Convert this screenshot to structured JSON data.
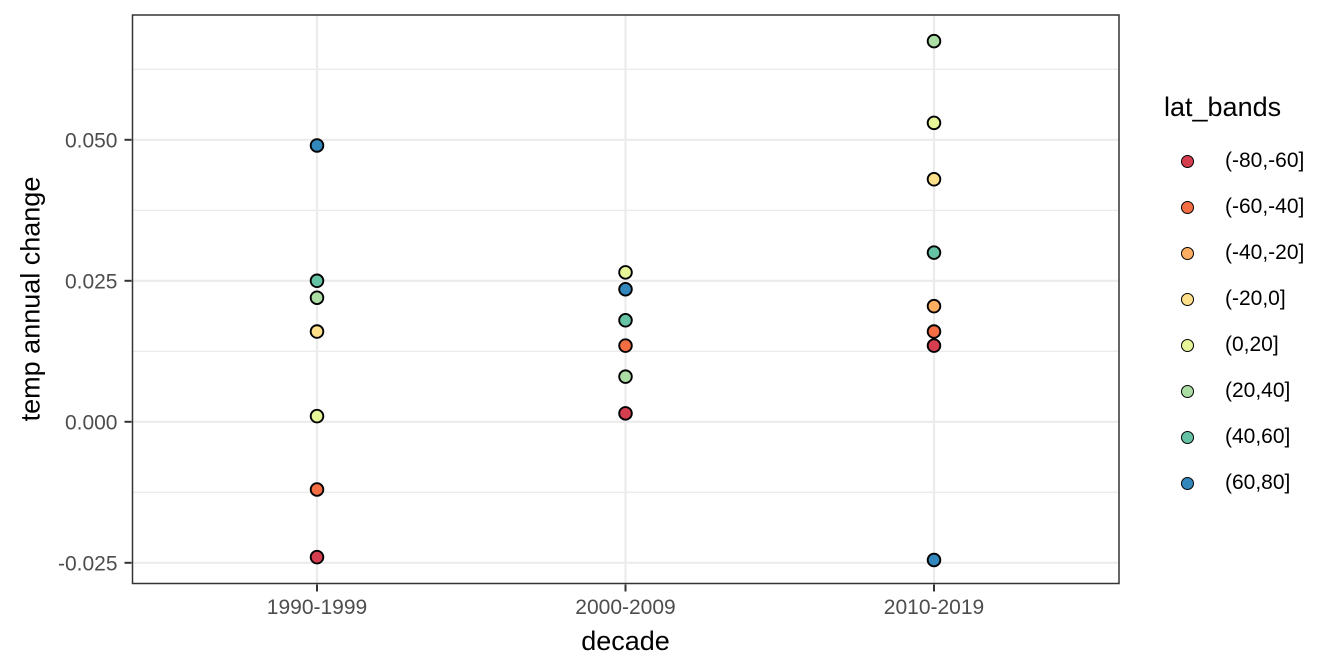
{
  "chart_data": {
    "type": "scatter",
    "title": "",
    "xlabel": "decade",
    "ylabel": "temp annual change",
    "categories": [
      "1990-1999",
      "2000-2009",
      "2010-2019"
    ],
    "x_tick_labels": [
      "1990-1999",
      "2000-2009",
      "2010-2019"
    ],
    "y_ticks": [
      {
        "value": 0.05,
        "label": "0.050"
      },
      {
        "value": 0.025,
        "label": "0.025"
      },
      {
        "value": 0.0,
        "label": "0.000"
      },
      {
        "value": -0.025,
        "label": "-0.025"
      }
    ],
    "y_minor_ticks": [
      0.0625,
      0.0375,
      0.0125,
      -0.0125
    ],
    "ylim": [
      -0.0291,
      0.0722
    ],
    "grid": true,
    "legend": {
      "title": "lat_bands",
      "position": "right",
      "entries": [
        {
          "label": "(-80,-60]",
          "color": "#D53E4F"
        },
        {
          "label": "(-60,-40]",
          "color": "#F46D43"
        },
        {
          "label": "(-40,-20]",
          "color": "#FDAE61"
        },
        {
          "label": "(-20,0]",
          "color": "#FEE08B"
        },
        {
          "label": "(0,20]",
          "color": "#E6F598"
        },
        {
          "label": "(20,40]",
          "color": "#ABDDA4"
        },
        {
          "label": "(40,60]",
          "color": "#66C2A5"
        },
        {
          "label": "(60,80]",
          "color": "#3288BD"
        }
      ]
    },
    "series": [
      {
        "name": "(-80,-60]",
        "color": "#D53E4F",
        "points": [
          {
            "x": "1990-1999",
            "y": -0.024
          },
          {
            "x": "2000-2009",
            "y": 0.0015
          },
          {
            "x": "2010-2019",
            "y": 0.0135
          }
        ]
      },
      {
        "name": "(-60,-40]",
        "color": "#F46D43",
        "points": [
          {
            "x": "1990-1999",
            "y": -0.012
          },
          {
            "x": "2000-2009",
            "y": 0.0135
          },
          {
            "x": "2010-2019",
            "y": 0.016
          }
        ]
      },
      {
        "name": "(-40,-20]",
        "color": "#FDAE61",
        "points": [
          {
            "x": "2010-2019",
            "y": 0.0205
          }
        ]
      },
      {
        "name": "(-20,0]",
        "color": "#FEE08B",
        "points": [
          {
            "x": "1990-1999",
            "y": 0.016
          },
          {
            "x": "2010-2019",
            "y": 0.043
          }
        ]
      },
      {
        "name": "(0,20]",
        "color": "#E6F598",
        "points": [
          {
            "x": "1990-1999",
            "y": 0.001
          },
          {
            "x": "2000-2009",
            "y": 0.0265
          },
          {
            "x": "2010-2019",
            "y": 0.053
          }
        ]
      },
      {
        "name": "(20,40]",
        "color": "#ABDDA4",
        "points": [
          {
            "x": "1990-1999",
            "y": 0.022
          },
          {
            "x": "2000-2009",
            "y": 0.008
          },
          {
            "x": "2010-2019",
            "y": 0.0675
          }
        ]
      },
      {
        "name": "(40,60]",
        "color": "#66C2A5",
        "points": [
          {
            "x": "1990-1999",
            "y": 0.025
          },
          {
            "x": "2000-2009",
            "y": 0.018
          },
          {
            "x": "2010-2019",
            "y": 0.03
          }
        ]
      },
      {
        "name": "(60,80]",
        "color": "#3288BD",
        "points": [
          {
            "x": "1990-1999",
            "y": 0.049
          },
          {
            "x": "2000-2009",
            "y": 0.0235
          },
          {
            "x": "2010-2019",
            "y": -0.0245
          }
        ]
      }
    ],
    "colors": {
      "panel_background": "#FFFFFF",
      "panel_border": "#333333",
      "gridline": "#EBEBEB",
      "tick_mark": "#333333",
      "tick_label": "#4D4D4D",
      "axis_title": "#000000",
      "point_stroke": "#000000"
    }
  }
}
